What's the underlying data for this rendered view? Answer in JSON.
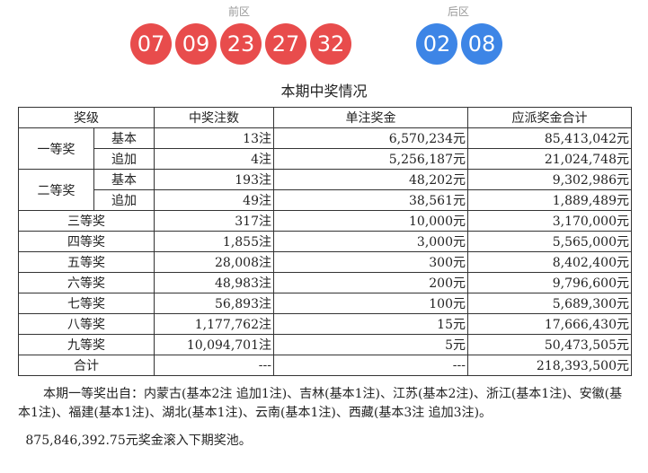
{
  "header": {
    "front_label": "前区",
    "back_label": "后区",
    "front_balls": [
      "07",
      "09",
      "23",
      "27",
      "32"
    ],
    "back_balls": [
      "02",
      "08"
    ],
    "colors": {
      "front": "#e84c4c",
      "back": "#3d85e6"
    }
  },
  "table": {
    "title": "本期中奖情况",
    "headers": [
      "奖级",
      "中奖注数",
      "单注奖金",
      "应派奖金合计"
    ],
    "rows": [
      {
        "level": "一等奖",
        "sub": "基本",
        "count": "13注",
        "unit": "6,570,234元",
        "total": "85,413,042元"
      },
      {
        "level": "",
        "sub": "追加",
        "count": "4注",
        "unit": "5,256,187元",
        "total": "21,024,748元"
      },
      {
        "level": "二等奖",
        "sub": "基本",
        "count": "193注",
        "unit": "48,202元",
        "total": "9,302,986元"
      },
      {
        "level": "",
        "sub": "追加",
        "count": "49注",
        "unit": "38,561元",
        "total": "1,889,489元"
      },
      {
        "level": "三等奖",
        "sub": "",
        "count": "317注",
        "unit": "10,000元",
        "total": "3,170,000元"
      },
      {
        "level": "四等奖",
        "sub": "",
        "count": "1,855注",
        "unit": "3,000元",
        "total": "5,565,000元"
      },
      {
        "level": "五等奖",
        "sub": "",
        "count": "28,008注",
        "unit": "300元",
        "total": "8,402,400元"
      },
      {
        "level": "六等奖",
        "sub": "",
        "count": "48,983注",
        "unit": "200元",
        "total": "9,796,600元"
      },
      {
        "level": "七等奖",
        "sub": "",
        "count": "56,893注",
        "unit": "100元",
        "total": "5,689,300元"
      },
      {
        "level": "八等奖",
        "sub": "",
        "count": "1,177,762注",
        "unit": "15元",
        "total": "17,666,430元"
      },
      {
        "level": "九等奖",
        "sub": "",
        "count": "10,094,701注",
        "unit": "5元",
        "total": "50,473,505元"
      },
      {
        "level": "合计",
        "sub": "",
        "count": "---",
        "unit": "---",
        "total": "218,393,500元"
      }
    ]
  },
  "notes": {
    "first_prize_origin": "本期一等奖出自：内蒙古(基本2注 追加1注)、吉林(基本1注)、江苏(基本2注)、浙江(基本1注)、安徽(基本1注)、福建(基本1注)、湖北(基本1注)、云南(基本1注)、西藏(基本3注 追加3注)。",
    "rollover": "875,846,392.75元奖金滚入下期奖池。"
  }
}
